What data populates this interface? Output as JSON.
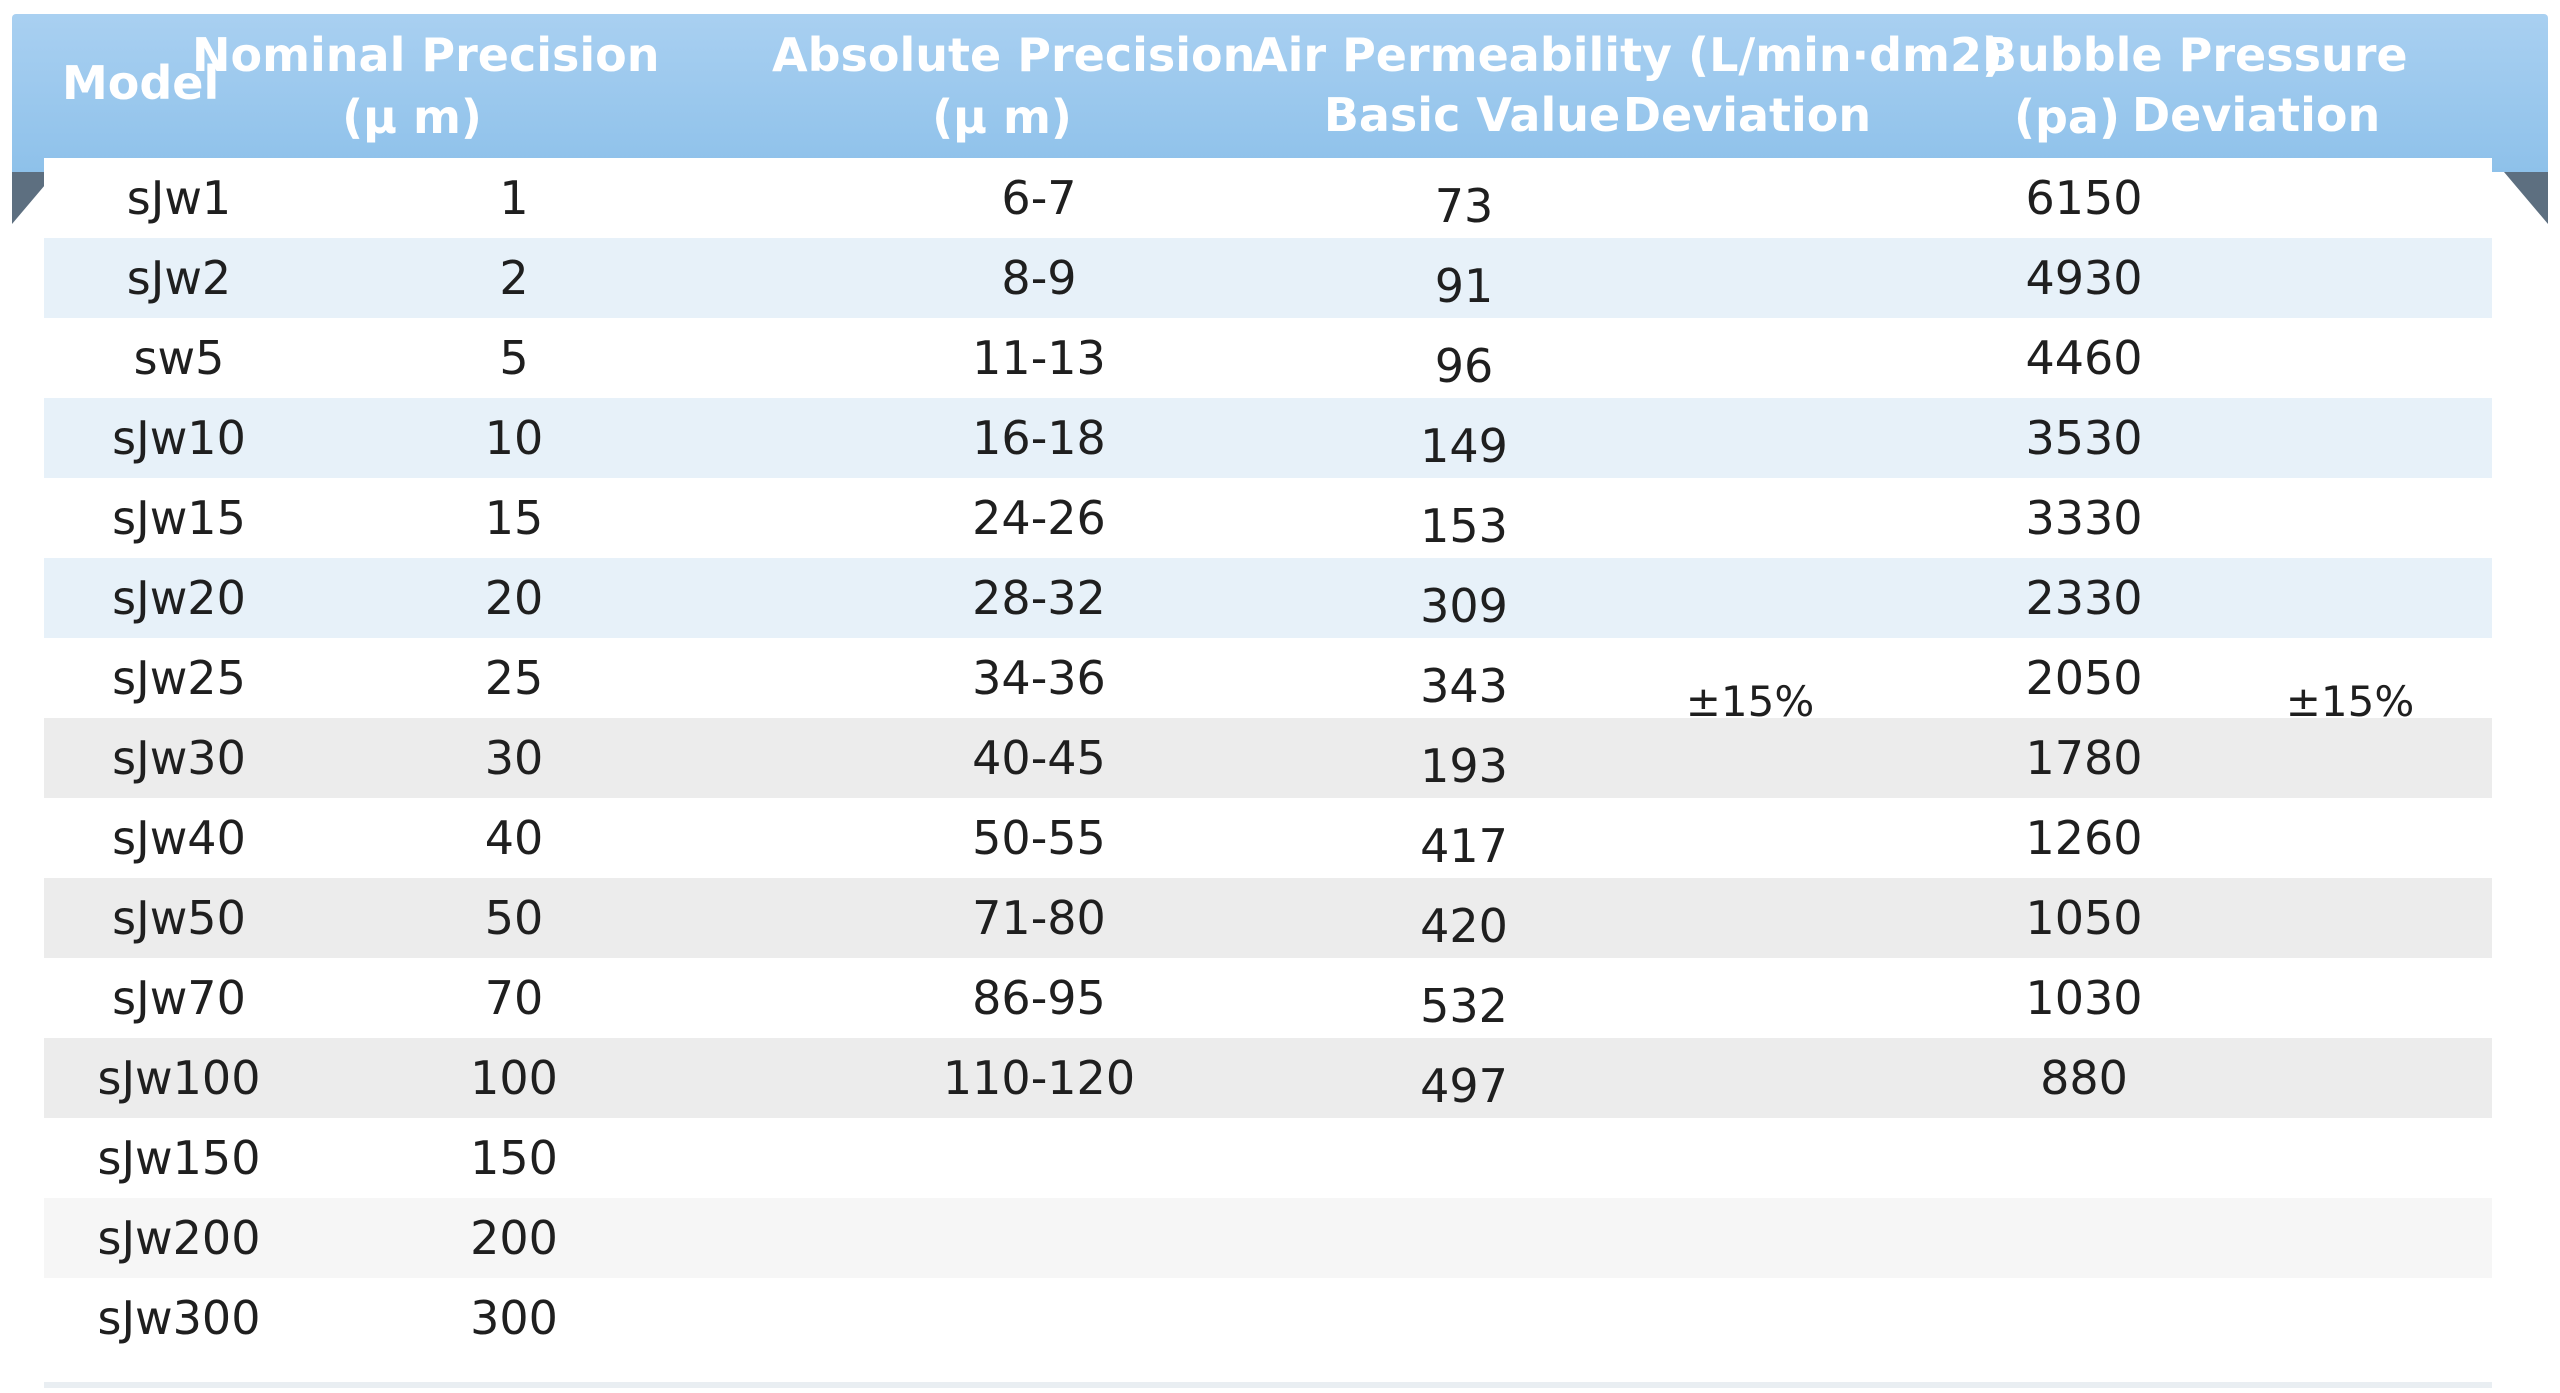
{
  "header": {
    "model": "Model",
    "nominal_line1": "Nominal Precision",
    "nominal_line2": "(μ m)",
    "absolute_line1": "Absolute Precision",
    "absolute_line2": "(μ m)",
    "air_line1": "Air Permeability (L/min·dm2)",
    "air_basic": "Basic Value",
    "air_deviation": "Deviation",
    "bubble_line1": "Bubble Pressure",
    "bubble_pa": "(pa)",
    "bubble_deviation": "Deviation"
  },
  "deviation": {
    "air": "±15%",
    "bubble": "±15%"
  },
  "rows": [
    {
      "model": "sJw1",
      "nominal": "1",
      "absolute": "6-7",
      "air": "73",
      "bubble": "6150"
    },
    {
      "model": "sJw2",
      "nominal": "2",
      "absolute": "8-9",
      "air": "91",
      "bubble": "4930"
    },
    {
      "model": "sw5",
      "nominal": "5",
      "absolute": "11-13",
      "air": "96",
      "bubble": "4460"
    },
    {
      "model": "sJw10",
      "nominal": "10",
      "absolute": "16-18",
      "air": "149",
      "bubble": "3530"
    },
    {
      "model": "sJw15",
      "nominal": "15",
      "absolute": "24-26",
      "air": "153",
      "bubble": "3330"
    },
    {
      "model": "sJw20",
      "nominal": "20",
      "absolute": "28-32",
      "air": "309",
      "bubble": "2330"
    },
    {
      "model": "sJw25",
      "nominal": "25",
      "absolute": "34-36",
      "air": "343",
      "bubble": "2050"
    },
    {
      "model": "sJw30",
      "nominal": "30",
      "absolute": "40-45",
      "air": "193",
      "bubble": "1780"
    },
    {
      "model": "sJw40",
      "nominal": "40",
      "absolute": "50-55",
      "air": "417",
      "bubble": "1260"
    },
    {
      "model": "sJw50",
      "nominal": "50",
      "absolute": "71-80",
      "air": "420",
      "bubble": "1050"
    },
    {
      "model": "sJw70",
      "nominal": "70",
      "absolute": "86-95",
      "air": "532",
      "bubble": "1030"
    },
    {
      "model": "sJw100",
      "nominal": "100",
      "absolute": "110-120",
      "air": "497",
      "bubble": "880"
    },
    {
      "model": "sJw150",
      "nominal": "150",
      "absolute": "",
      "air": "",
      "bubble": ""
    },
    {
      "model": "sJw200",
      "nominal": "200",
      "absolute": "",
      "air": "",
      "bubble": ""
    },
    {
      "model": "sJw300",
      "nominal": "300",
      "absolute": "",
      "air": "",
      "bubble": ""
    }
  ],
  "colors": {
    "header_bg": "#9ac8ee",
    "header_text": "#ffffff",
    "stripe_blue": "#e7f1f9",
    "stripe_grey": "#ececec",
    "fold": "#5d6f80"
  }
}
